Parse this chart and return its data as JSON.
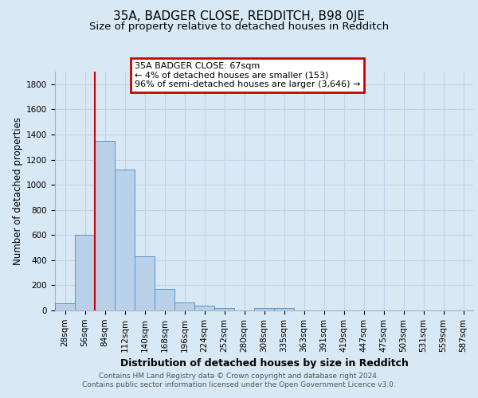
{
  "title": "35A, BADGER CLOSE, REDDITCH, B98 0JE",
  "subtitle": "Size of property relative to detached houses in Redditch",
  "xlabel": "Distribution of detached houses by size in Redditch",
  "ylabel": "Number of detached properties",
  "bar_labels": [
    "28sqm",
    "56sqm",
    "84sqm",
    "112sqm",
    "140sqm",
    "168sqm",
    "196sqm",
    "224sqm",
    "252sqm",
    "280sqm",
    "308sqm",
    "335sqm",
    "363sqm",
    "391sqm",
    "419sqm",
    "447sqm",
    "475sqm",
    "503sqm",
    "531sqm",
    "559sqm",
    "587sqm"
  ],
  "bar_values": [
    55,
    600,
    1350,
    1120,
    430,
    170,
    65,
    38,
    20,
    0,
    20,
    20,
    0,
    0,
    0,
    0,
    0,
    0,
    0,
    0,
    0
  ],
  "bar_color": "#b8d0e8",
  "bar_edge_color": "#5a96c8",
  "annotation_box_text": "35A BADGER CLOSE: 67sqm\n← 4% of detached houses are smaller (153)\n96% of semi-detached houses are larger (3,646) →",
  "annotation_box_color": "#ffffff",
  "annotation_box_edge_color": "#cc0000",
  "red_line_x": 1.5,
  "ylim": [
    0,
    1900
  ],
  "yticks": [
    0,
    200,
    400,
    600,
    800,
    1000,
    1200,
    1400,
    1600,
    1800
  ],
  "grid_color": "#c0d4e8",
  "background_color": "#d8e8f4",
  "plot_bg_color": "#d8e8f4",
  "footer_text": "Contains HM Land Registry data © Crown copyright and database right 2024.\nContains public sector information licensed under the Open Government Licence v3.0.",
  "title_fontsize": 11,
  "subtitle_fontsize": 9.5,
  "xlabel_fontsize": 9,
  "ylabel_fontsize": 8.5,
  "tick_fontsize": 7.5,
  "footer_fontsize": 6.5
}
